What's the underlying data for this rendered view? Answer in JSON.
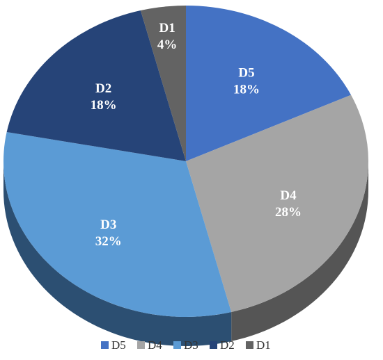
{
  "chart_data": {
    "type": "pie",
    "style": "3d",
    "title": "",
    "slices": [
      {
        "name": "D5",
        "value": 18,
        "label": "18%",
        "color": "#4472C4",
        "side_color": "#2E4F8A"
      },
      {
        "name": "D4",
        "value": 28,
        "label": "28%",
        "color": "#A5A5A5",
        "side_color": "#555555"
      },
      {
        "name": "D3",
        "value": 32,
        "label": "32%",
        "color": "#5B9BD5",
        "side_color": "#2C4F72"
      },
      {
        "name": "D2",
        "value": 18,
        "label": "18%",
        "color": "#264478",
        "side_color": "#16294A"
      },
      {
        "name": "D1",
        "value": 4,
        "label": "4%",
        "color": "#636363",
        "side_color": "#3A3A3A"
      }
    ],
    "legend": {
      "placement": "bottom",
      "entries": [
        "D5",
        "D4",
        "D3",
        "D2",
        "D1"
      ]
    }
  }
}
